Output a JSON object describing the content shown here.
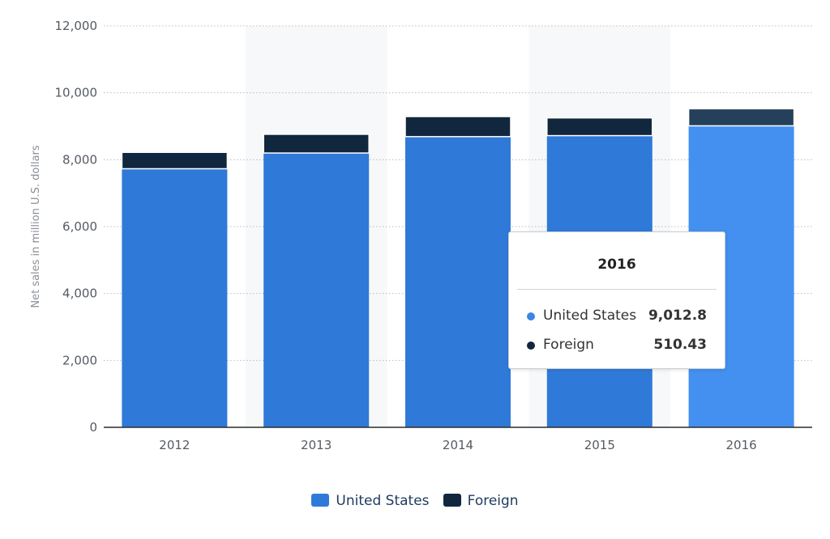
{
  "chart_data": {
    "type": "bar",
    "stacked": true,
    "categories": [
      "2012",
      "2013",
      "2014",
      "2015",
      "2016"
    ],
    "series": [
      {
        "name": "United States",
        "values": [
          7730,
          8200,
          8690,
          8720,
          9012.8
        ],
        "color": "#2f7ad9",
        "highlight_color": "#4490f0"
      },
      {
        "name": "Foreign",
        "values": [
          490,
          560,
          600,
          530,
          510.43
        ],
        "color": "#11273e",
        "highlight_color": "#25405a"
      }
    ],
    "title": "",
    "xlabel": "",
    "ylabel": "Net sales in million U.S. dollars",
    "ylim": [
      0,
      12000
    ],
    "yticks": [
      0,
      2000,
      4000,
      6000,
      8000,
      10000,
      12000
    ],
    "ytick_labels": [
      "0",
      "2,000",
      "4,000",
      "6,000",
      "8,000",
      "10,000",
      "12,000"
    ],
    "grid": "horizontal dotted",
    "legend": "bottom-center",
    "highlighted_category": "2016"
  },
  "tooltip": {
    "title": "2016",
    "rows": [
      {
        "name": "United States",
        "value": "9,012.8",
        "color": "#2f7ad9"
      },
      {
        "name": "Foreign",
        "value": "510.43",
        "color": "#11273e"
      }
    ]
  },
  "legend": {
    "items": [
      {
        "label": "United States",
        "color": "#2f7ad9"
      },
      {
        "label": "Foreign",
        "color": "#11273e"
      }
    ]
  }
}
